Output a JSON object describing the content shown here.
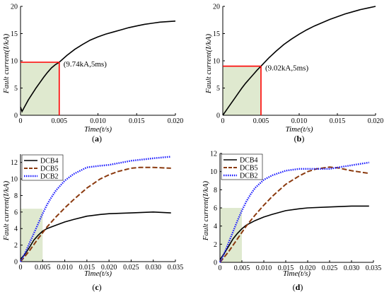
{
  "chart_data": [
    {
      "id": "a",
      "type": "line",
      "panel_label": "a",
      "xlabel": "Time(t/s)",
      "ylabel": "Fault current(I/kA)",
      "xlim": [
        0,
        0.02
      ],
      "ylim": [
        0,
        20
      ],
      "xticks": [
        "0",
        "0.005",
        "0.010",
        "0.015",
        "0.020"
      ],
      "yticks": [
        "0",
        "5",
        "10",
        "15",
        "20"
      ],
      "annotation": {
        "text": "(9.74kA,5ms)",
        "x": 0.005,
        "y": 9.74
      },
      "shaded_region": {
        "x": [
          0,
          0.005
        ],
        "y": [
          0,
          9.74
        ],
        "color": "#dfe9cf"
      },
      "marker_color": "#ff0000",
      "series": [
        {
          "color": "#000000",
          "style": "solid",
          "x": [
            0,
            0.0002,
            0.0005,
            0.001,
            0.0015,
            0.002,
            0.0025,
            0.003,
            0.0035,
            0.004,
            0.0045,
            0.005,
            0.006,
            0.007,
            0.008,
            0.009,
            0.01,
            0.011,
            0.012,
            0.013,
            0.014,
            0.015,
            0.016,
            0.017,
            0.018,
            0.019,
            0.02
          ],
          "y": [
            1.5,
            0.7,
            1.5,
            2.8,
            3.9,
            5.0,
            6.0,
            7.0,
            7.9,
            8.7,
            9.3,
            9.74,
            11.0,
            12.1,
            13.0,
            13.8,
            14.4,
            14.9,
            15.3,
            15.7,
            16.1,
            16.4,
            16.7,
            16.9,
            17.1,
            17.2,
            17.3
          ]
        }
      ]
    },
    {
      "id": "b",
      "type": "line",
      "panel_label": "b",
      "xlabel": "Time(t/s)",
      "ylabel": "Fault current(I/kA)",
      "xlim": [
        0,
        0.02
      ],
      "ylim": [
        0,
        20
      ],
      "xticks": [
        "0",
        "0.005",
        "0.010",
        "0.015",
        "0.020"
      ],
      "yticks": [
        "0",
        "5",
        "10",
        "15",
        "20"
      ],
      "annotation": {
        "text": "(9.02kA,5ms)",
        "x": 0.005,
        "y": 9.02
      },
      "shaded_region": {
        "x": [
          0,
          0.005
        ],
        "y": [
          0,
          9.02
        ],
        "color": "#dfe9cf"
      },
      "marker_color": "#ff0000",
      "series": [
        {
          "color": "#000000",
          "style": "solid",
          "x": [
            0,
            0.0005,
            0.001,
            0.0015,
            0.002,
            0.0025,
            0.003,
            0.0035,
            0.004,
            0.0045,
            0.005,
            0.006,
            0.007,
            0.008,
            0.009,
            0.01,
            0.011,
            0.012,
            0.013,
            0.014,
            0.015,
            0.016,
            0.017,
            0.018,
            0.019,
            0.02
          ],
          "y": [
            0,
            1.0,
            2.0,
            3.0,
            4.0,
            5.0,
            5.9,
            6.7,
            7.5,
            8.3,
            9.02,
            10.5,
            11.8,
            13.0,
            14.0,
            14.9,
            15.7,
            16.4,
            17.0,
            17.6,
            18.1,
            18.6,
            19.0,
            19.4,
            19.7,
            20.0
          ]
        }
      ]
    },
    {
      "id": "c",
      "type": "line",
      "panel_label": "c",
      "xlabel": "Time(t/s)",
      "ylabel": "Fault current(I/kA)",
      "xlim": [
        0,
        0.035
      ],
      "ylim": [
        0,
        13
      ],
      "xticks": [
        "0",
        "0.005",
        "0.010",
        "0.015",
        "0.020",
        "0.025",
        "0.030",
        "0.035"
      ],
      "yticks": [
        "0",
        "2",
        "4",
        "6",
        "8",
        "10",
        "12"
      ],
      "yticks_values": [
        0,
        2,
        4,
        6,
        8,
        10,
        12
      ],
      "legend": [
        "DCB4",
        "DCB5",
        "DCB2"
      ],
      "legend_position": "top-left",
      "shaded_region": {
        "x": [
          0,
          0.005
        ],
        "y": [
          0,
          6.4
        ],
        "color": "#dfe9cf"
      },
      "series": [
        {
          "name": "DCB4",
          "color": "#000000",
          "style": "solid",
          "x": [
            0,
            0.001,
            0.002,
            0.003,
            0.004,
            0.005,
            0.006,
            0.008,
            0.01,
            0.012,
            0.015,
            0.018,
            0.02,
            0.025,
            0.03,
            0.034
          ],
          "y": [
            0.3,
            0.9,
            1.7,
            2.6,
            3.2,
            3.7,
            4.0,
            4.4,
            4.8,
            5.1,
            5.5,
            5.7,
            5.8,
            5.9,
            6.0,
            5.9
          ]
        },
        {
          "name": "DCB5",
          "color": "#8b3a0f",
          "style": "dashed",
          "x": [
            0,
            0.002,
            0.004,
            0.005,
            0.006,
            0.008,
            0.01,
            0.012,
            0.015,
            0.018,
            0.02,
            0.022,
            0.025,
            0.027,
            0.03,
            0.034
          ],
          "y": [
            0,
            1.3,
            2.8,
            3.5,
            4.2,
            5.4,
            6.5,
            7.5,
            8.9,
            10.0,
            10.5,
            10.9,
            11.3,
            11.4,
            11.4,
            11.3
          ]
        },
        {
          "name": "DCB2",
          "color": "#1a1aff",
          "style": "dotted",
          "x": [
            0,
            0.001,
            0.002,
            0.003,
            0.004,
            0.005,
            0.006,
            0.007,
            0.008,
            0.01,
            0.012,
            0.015,
            0.018,
            0.02,
            0.022,
            0.025,
            0.03,
            0.034
          ],
          "y": [
            0,
            1.0,
            2.2,
            3.4,
            4.6,
            5.8,
            6.9,
            7.8,
            8.6,
            9.8,
            10.6,
            11.4,
            11.6,
            11.7,
            11.9,
            12.2,
            12.5,
            12.7
          ]
        }
      ]
    },
    {
      "id": "d",
      "type": "line",
      "panel_label": "d",
      "xlabel": "Time(t/s)",
      "ylabel": "Fault current(I/kA)",
      "xlim": [
        0,
        0.035
      ],
      "ylim": [
        0,
        12
      ],
      "xticks": [
        "0",
        "0.005",
        "0.010",
        "0.015",
        "0.020",
        "0.025",
        "0.030",
        "0.035"
      ],
      "yticks": [
        "0",
        "2",
        "4",
        "6",
        "8",
        "10",
        "12"
      ],
      "yticks_values": [
        0,
        2,
        4,
        6,
        8,
        10,
        12
      ],
      "legend": [
        "DCB4",
        "DCB5",
        "DCB2"
      ],
      "legend_position": "top-left",
      "shaded_region": {
        "x": [
          0,
          0.005
        ],
        "y": [
          0,
          6.0
        ],
        "color": "#dfe9cf"
      },
      "series": [
        {
          "name": "DCB4",
          "color": "#000000",
          "style": "solid",
          "x": [
            0,
            0.001,
            0.002,
            0.003,
            0.004,
            0.005,
            0.006,
            0.008,
            0.01,
            0.012,
            0.015,
            0.018,
            0.02,
            0.025,
            0.03,
            0.034
          ],
          "y": [
            0.3,
            1.0,
            1.8,
            2.6,
            3.2,
            3.7,
            4.1,
            4.6,
            5.0,
            5.3,
            5.7,
            5.9,
            6.0,
            6.1,
            6.2,
            6.2
          ]
        },
        {
          "name": "DCB5",
          "color": "#8b3a0f",
          "style": "dashed",
          "x": [
            0,
            0.002,
            0.004,
            0.005,
            0.006,
            0.008,
            0.01,
            0.012,
            0.015,
            0.018,
            0.02,
            0.022,
            0.025,
            0.027,
            0.03,
            0.034
          ],
          "y": [
            0,
            1.2,
            2.6,
            3.3,
            4.0,
            5.2,
            6.3,
            7.3,
            8.6,
            9.5,
            10.0,
            10.3,
            10.5,
            10.4,
            10.1,
            9.8
          ]
        },
        {
          "name": "DCB2",
          "color": "#1a1aff",
          "style": "dotted",
          "x": [
            0,
            0.001,
            0.002,
            0.003,
            0.004,
            0.005,
            0.006,
            0.007,
            0.008,
            0.01,
            0.012,
            0.015,
            0.018,
            0.02,
            0.022,
            0.025,
            0.03,
            0.034
          ],
          "y": [
            0,
            1.0,
            2.2,
            3.4,
            4.6,
            5.7,
            6.7,
            7.5,
            8.2,
            9.1,
            9.6,
            10.1,
            10.3,
            10.3,
            10.3,
            10.3,
            10.7,
            11.0
          ]
        }
      ]
    }
  ]
}
